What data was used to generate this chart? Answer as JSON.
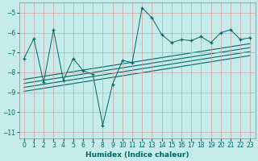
{
  "xlabel": "Humidex (Indice chaleur)",
  "bg_color": "#c5ecea",
  "grid_color": "#d4a0a0",
  "line_color": "#006666",
  "spine_color": "#888888",
  "xlim": [
    -0.5,
    23.5
  ],
  "ylim": [
    -11.3,
    -4.5
  ],
  "yticks": [
    -11,
    -10,
    -9,
    -8,
    -7,
    -6,
    -5
  ],
  "xticks": [
    0,
    1,
    2,
    3,
    4,
    5,
    6,
    7,
    8,
    9,
    10,
    11,
    12,
    13,
    14,
    15,
    16,
    17,
    18,
    19,
    20,
    21,
    22,
    23
  ],
  "main_x": [
    0,
    1,
    2,
    3,
    4,
    5,
    6,
    7,
    8,
    9,
    10,
    11,
    12,
    13,
    14,
    15,
    16,
    17,
    18,
    19,
    20,
    21,
    22,
    23
  ],
  "main_y": [
    -7.3,
    -6.3,
    -8.5,
    -5.85,
    -8.4,
    -7.3,
    -7.9,
    -8.1,
    -10.65,
    -8.6,
    -7.4,
    -7.5,
    -4.75,
    -5.25,
    -6.1,
    -6.5,
    -6.35,
    -6.4,
    -6.2,
    -6.5,
    -6.0,
    -5.85,
    -6.35,
    -6.25
  ],
  "regression_lines": [
    {
      "x0": 0,
      "y0": -8.35,
      "x1": 23,
      "y1": -6.55
    },
    {
      "x0": 0,
      "y0": -8.55,
      "x1": 23,
      "y1": -6.75
    },
    {
      "x0": 0,
      "y0": -8.75,
      "x1": 23,
      "y1": -6.95
    },
    {
      "x0": 0,
      "y0": -8.95,
      "x1": 23,
      "y1": -7.15
    }
  ],
  "tick_fontsize": 5.5,
  "xlabel_fontsize": 6.5
}
